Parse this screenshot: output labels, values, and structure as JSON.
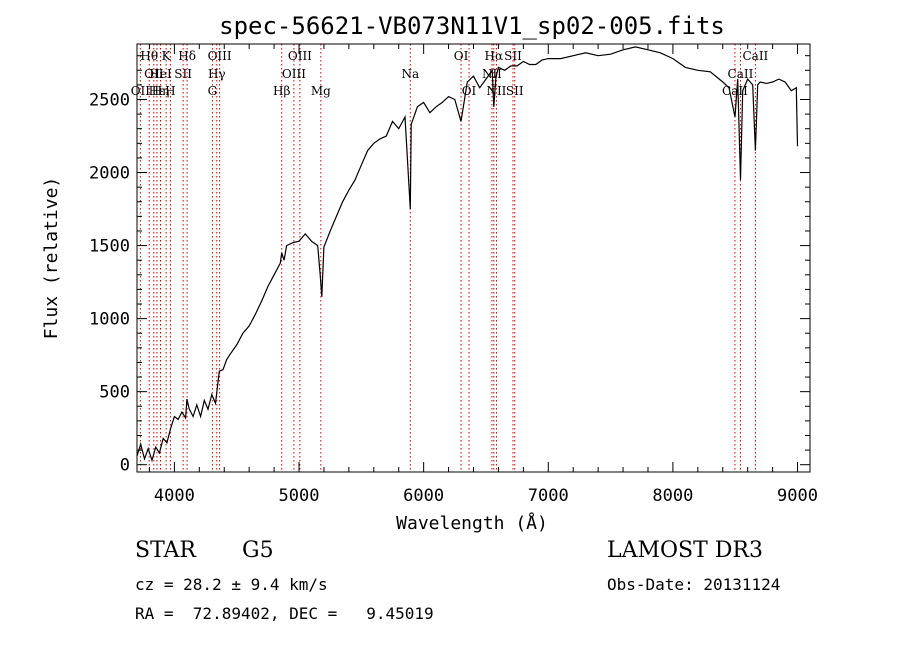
{
  "chart_data": {
    "type": "line",
    "title": "spec-56621-VB073N11V1_sp02-005.fits",
    "xlabel": "Wavelength (Å)",
    "ylabel": "Flux (relative)",
    "xlim": [
      3700,
      9100
    ],
    "ylim": [
      -50,
      2880
    ],
    "xticks": [
      4000,
      5000,
      6000,
      7000,
      8000,
      9000
    ],
    "yticks": [
      0,
      500,
      1000,
      1500,
      2000,
      2500
    ],
    "series": [
      {
        "name": "flux",
        "x": [
          3700,
          3730,
          3760,
          3790,
          3820,
          3850,
          3880,
          3910,
          3940,
          3970,
          4000,
          4030,
          4060,
          4090,
          4100,
          4120,
          4150,
          4180,
          4210,
          4240,
          4270,
          4300,
          4330,
          4360,
          4390,
          4420,
          4450,
          4500,
          4550,
          4600,
          4650,
          4700,
          4750,
          4800,
          4850,
          4861,
          4880,
          4900,
          4950,
          5000,
          5050,
          5100,
          5150,
          5170,
          5183,
          5200,
          5250,
          5300,
          5350,
          5400,
          5450,
          5500,
          5550,
          5600,
          5650,
          5700,
          5750,
          5800,
          5850,
          5893,
          5900,
          5950,
          6000,
          6050,
          6100,
          6150,
          6200,
          6250,
          6300,
          6350,
          6400,
          6450,
          6500,
          6550,
          6563,
          6580,
          6600,
          6650,
          6700,
          6750,
          6800,
          6850,
          6900,
          6950,
          7000,
          7100,
          7200,
          7300,
          7400,
          7500,
          7600,
          7700,
          7800,
          7900,
          8000,
          8100,
          8200,
          8300,
          8400,
          8450,
          8498,
          8520,
          8542,
          8560,
          8600,
          8640,
          8662,
          8680,
          8700,
          8750,
          8800,
          8850,
          8900,
          8950,
          8990,
          9000
        ],
        "values": [
          60,
          140,
          40,
          110,
          30,
          120,
          80,
          180,
          150,
          250,
          330,
          310,
          360,
          320,
          450,
          380,
          330,
          410,
          330,
          440,
          380,
          480,
          420,
          640,
          650,
          720,
          760,
          820,
          900,
          950,
          1030,
          1120,
          1220,
          1300,
          1380,
          1450,
          1400,
          1500,
          1520,
          1530,
          1580,
          1530,
          1500,
          1300,
          1150,
          1490,
          1600,
          1700,
          1800,
          1880,
          1950,
          2050,
          2150,
          2200,
          2230,
          2250,
          2350,
          2300,
          2380,
          1750,
          2330,
          2450,
          2480,
          2410,
          2450,
          2480,
          2520,
          2500,
          2350,
          2620,
          2660,
          2580,
          2640,
          2700,
          2450,
          2650,
          2720,
          2700,
          2730,
          2730,
          2760,
          2740,
          2740,
          2770,
          2780,
          2780,
          2800,
          2820,
          2800,
          2810,
          2840,
          2860,
          2840,
          2820,
          2780,
          2720,
          2700,
          2690,
          2620,
          2580,
          2380,
          2640,
          1950,
          2560,
          2640,
          2600,
          2150,
          2600,
          2620,
          2610,
          2620,
          2640,
          2620,
          2560,
          2580,
          2180
        ]
      }
    ],
    "lines": [
      {
        "name": "OII",
        "wl": 3727,
        "row": 2
      },
      {
        "name": "Hθ",
        "wl": 3798,
        "row": 0
      },
      {
        "name": "OII",
        "wl": 3835,
        "row": 1
      },
      {
        "name": "Hε",
        "wl": 3860,
        "row": 2
      },
      {
        "name": "HeI",
        "wl": 3889,
        "row": 1
      },
      {
        "name": "K",
        "wl": 3934,
        "row": 0
      },
      {
        "name": "Hη",
        "wl": 3889,
        "row": 2
      },
      {
        "name": "H",
        "wl": 3968,
        "row": 2
      },
      {
        "name": "SII",
        "wl": 4070,
        "row": 1
      },
      {
        "name": "Hδ",
        "wl": 4102,
        "row": 0
      },
      {
        "name": "OIII",
        "wl": 4363,
        "row": 0
      },
      {
        "name": "Hγ",
        "wl": 4340,
        "row": 1
      },
      {
        "name": "G",
        "wl": 4305,
        "row": 2
      },
      {
        "name": "Hβ",
        "wl": 4861,
        "row": 2
      },
      {
        "name": "OIII",
        "wl": 5007,
        "row": 0
      },
      {
        "name": "OIII",
        "wl": 4959,
        "row": 1
      },
      {
        "name": "Mg",
        "wl": 5175,
        "row": 2
      },
      {
        "name": "Na",
        "wl": 5893,
        "row": 1
      },
      {
        "name": "OI",
        "wl": 6300,
        "row": 0
      },
      {
        "name": "OI",
        "wl": 6364,
        "row": 2
      },
      {
        "name": "Hα",
        "wl": 6563,
        "row": 0
      },
      {
        "name": "NII",
        "wl": 6548,
        "row": 1
      },
      {
        "name": "NII",
        "wl": 6584,
        "row": 2
      },
      {
        "name": "SII",
        "wl": 6717,
        "row": 0
      },
      {
        "name": "SII",
        "wl": 6731,
        "row": 2
      },
      {
        "name": "CaII",
        "wl": 8662,
        "row": 0
      },
      {
        "name": "CaII",
        "wl": 8542,
        "row": 1
      },
      {
        "name": "CaII",
        "wl": 8498,
        "row": 2
      }
    ]
  },
  "info": {
    "object_class": "STAR",
    "subclass": "G5",
    "survey": "LAMOST DR3",
    "redshift": "cz = 28.2 ± 9.4 km/s",
    "obs_date": "Obs-Date: 20131124",
    "coords": "RA =  72.89402, DEC =   9.45019"
  },
  "colors": {
    "spectrum": "#000000",
    "line_marker": "#cc0000",
    "axes": "#000000"
  }
}
